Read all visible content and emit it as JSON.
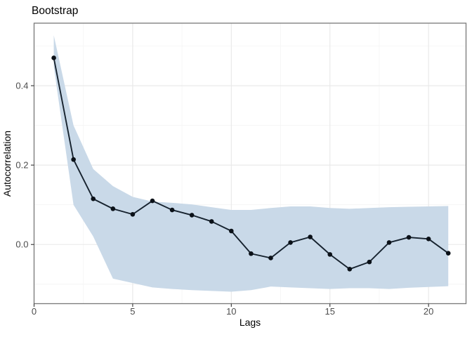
{
  "chart_data": {
    "type": "line",
    "title": "Bootstrap",
    "xlabel": "Lags",
    "ylabel": "Autocorrelation",
    "x": [
      1,
      2,
      3,
      4,
      5,
      6,
      7,
      8,
      9,
      10,
      11,
      12,
      13,
      14,
      15,
      16,
      17,
      18,
      19,
      20,
      21
    ],
    "series": [
      {
        "name": "bootstrap-autocorrelation",
        "values": [
          0.47,
          0.214,
          0.115,
          0.09,
          0.076,
          0.11,
          0.087,
          0.074,
          0.058,
          0.034,
          -0.023,
          -0.034,
          0.005,
          0.019,
          -0.025,
          -0.062,
          -0.044,
          0.005,
          0.018,
          0.014,
          -0.022
        ]
      }
    ],
    "band": {
      "name": "bootstrap-confidence-ribbon",
      "upper": [
        0.527,
        0.3,
        0.19,
        0.147,
        0.12,
        0.108,
        0.105,
        0.101,
        0.094,
        0.087,
        0.087,
        0.092,
        0.096,
        0.096,
        0.092,
        0.09,
        0.092,
        0.094,
        0.095,
        0.096,
        0.097
      ],
      "lower": [
        0.448,
        0.1,
        0.02,
        -0.086,
        -0.097,
        -0.108,
        -0.112,
        -0.115,
        -0.117,
        -0.119,
        -0.115,
        -0.106,
        -0.108,
        -0.11,
        -0.112,
        -0.11,
        -0.11,
        -0.112,
        -0.109,
        -0.107,
        -0.105
      ]
    },
    "xlim": [
      0,
      21.9
    ],
    "ylim": [
      -0.149,
      0.5575
    ],
    "x_ticks": [
      {
        "v": 0,
        "label": "0"
      },
      {
        "v": 5,
        "label": "5"
      },
      {
        "v": 10,
        "label": "10"
      },
      {
        "v": 15,
        "label": "15"
      },
      {
        "v": 20,
        "label": "20"
      }
    ],
    "y_ticks": [
      {
        "v": 0.0,
        "label": "0.0"
      },
      {
        "v": 0.2,
        "label": "0.2"
      },
      {
        "v": 0.4,
        "label": "0.4"
      }
    ],
    "x_minor": [
      2.5,
      7.5,
      12.5,
      17.5
    ],
    "y_minor": [
      -0.1,
      0.1,
      0.3,
      0.5
    ],
    "grid": true,
    "legend": "none",
    "colors": {
      "ribbon": "#c9d9e8",
      "line": "#16222e",
      "point": "#0b1118",
      "grid_major": "#e8e8e8",
      "grid_minor": "#f4f4f4",
      "panel_border": "#787878",
      "tick": "#333333",
      "tick_label": "#4d4d4d",
      "title": "#000000",
      "background": "#ffffff"
    }
  }
}
